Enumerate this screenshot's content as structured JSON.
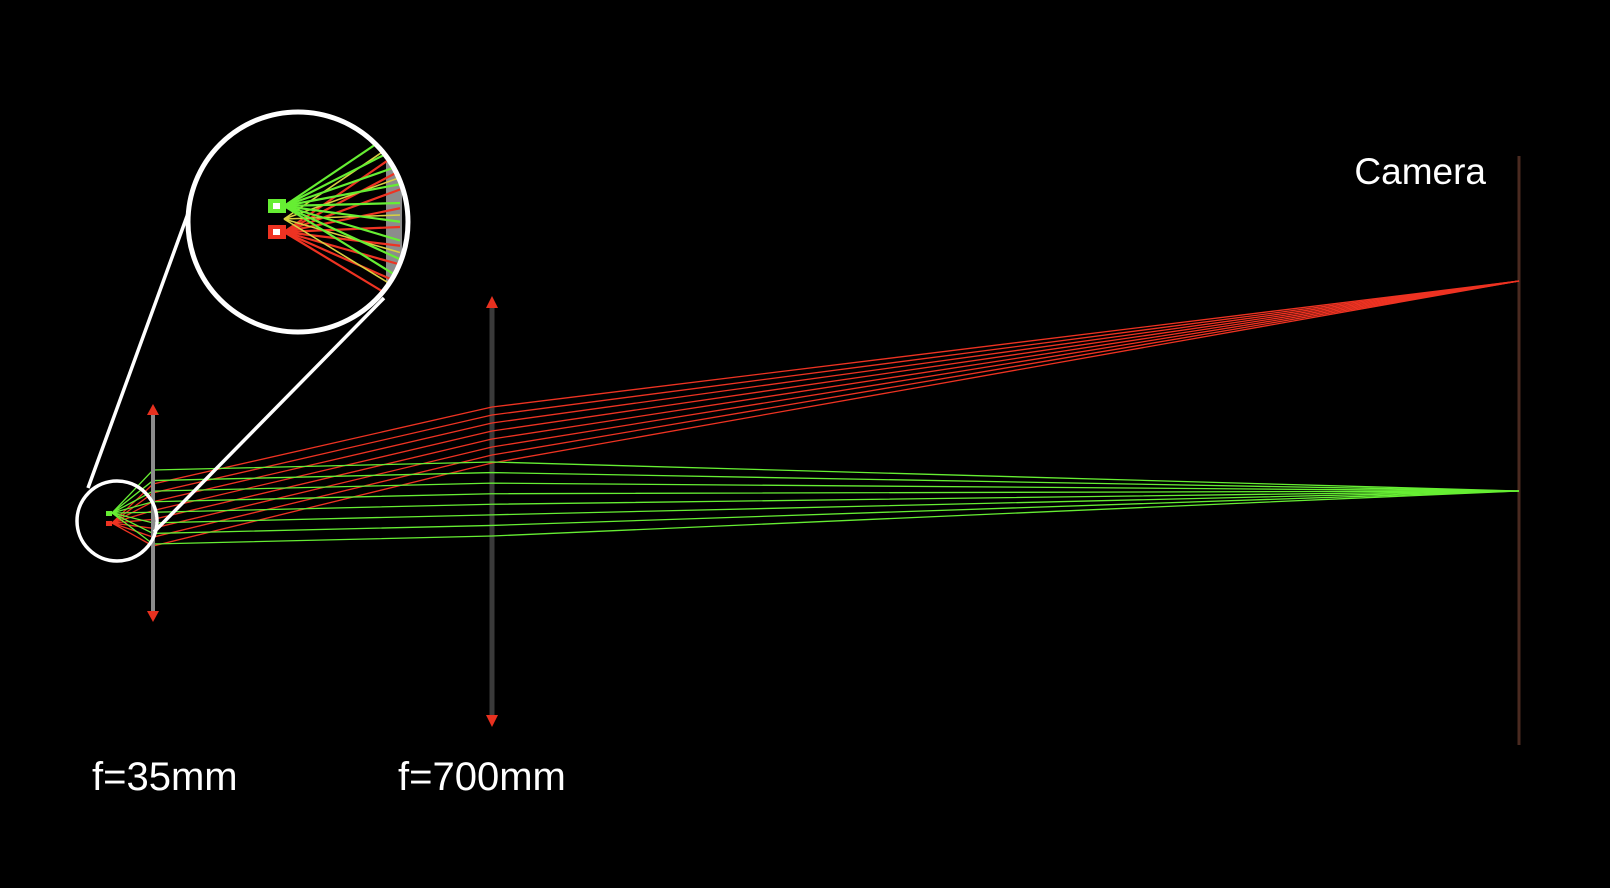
{
  "colors": {
    "background": "#000000",
    "green_ray": "#66ee33",
    "red_ray": "#ee3322",
    "yellow_ray": "#d8d040",
    "objective_lens": "#8c8c8c",
    "tube_lens": "#3a3a3a",
    "arrow_head": "#e8311f",
    "camera_sensor": "#4a2a20",
    "magnifier": "#ffffff",
    "label_text": "#ffffff"
  },
  "labels": {
    "objective_focal_length": "f=35mm",
    "tube_focal_length": "f=700mm",
    "camera": "Camera"
  },
  "icons": {
    "lens_arrow": "double-arrow-icon",
    "magnifier": "magnifier-circle-icon"
  }
}
